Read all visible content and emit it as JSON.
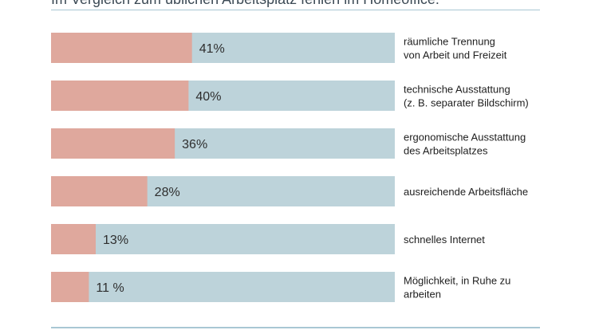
{
  "chart_data": {
    "type": "bar",
    "orientation": "horizontal",
    "title": "Im Vergleich zum üblichen Arbeitsplatz fehlen im Homeoffice:",
    "xlim": [
      0,
      100
    ],
    "unit": "%",
    "colors": {
      "value": "#dfa89d",
      "remainder": "#bdd3da"
    },
    "categories": [
      [
        "räumliche Trennung",
        "von Arbeit und Freizeit"
      ],
      [
        "technische Ausstattung",
        "(z. B. separater Bildschirm)"
      ],
      [
        "ergonomische Ausstattung",
        "des Arbeitsplatzes"
      ],
      [
        "ausreichende Arbeitsfläche"
      ],
      [
        "schnelles Internet"
      ],
      [
        "Möglichkeit, in Ruhe zu",
        "arbeiten"
      ]
    ],
    "values": [
      41,
      40,
      36,
      28,
      13,
      11
    ],
    "value_labels": [
      "41%",
      "40%",
      "36%",
      "28%",
      "13%",
      "11 %"
    ]
  }
}
